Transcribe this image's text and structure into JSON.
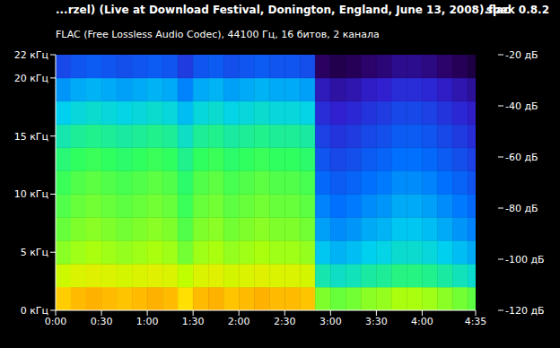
{
  "chart_data": {
    "type": "heatmap",
    "title": "...rzel) (Live at Download Festival, Donington, England, June 13, 2008).flac",
    "subtitle": "FLAC (Free Lossless Audio Codec), 44100 Гц, 16 битов, 2 канала",
    "annotations": [
      "spek 0.8.2"
    ],
    "grid": false,
    "xlim": [
      0,
      275
    ],
    "xticks": [
      {
        "value": 0,
        "label": "0:00"
      },
      {
        "value": 30,
        "label": "0:30"
      },
      {
        "value": 60,
        "label": "1:00"
      },
      {
        "value": 90,
        "label": "1:30"
      },
      {
        "value": 120,
        "label": "2:00"
      },
      {
        "value": 150,
        "label": "2:30"
      },
      {
        "value": 180,
        "label": "3:00"
      },
      {
        "value": 210,
        "label": "3:30"
      },
      {
        "value": 240,
        "label": "4:00"
      },
      {
        "value": 275,
        "label": "4:35"
      }
    ],
    "ylim": [
      0,
      22
    ],
    "yticks": [
      {
        "value": 0,
        "label": "0 кГц"
      },
      {
        "value": 5,
        "label": "5 кГц"
      },
      {
        "value": 10,
        "label": "10 кГц"
      },
      {
        "value": 15,
        "label": "15 кГц"
      },
      {
        "value": 20,
        "label": "20 кГц"
      },
      {
        "value": 22,
        "label": "22 кГц"
      }
    ],
    "x_bins": [
      0,
      10,
      20,
      30,
      40,
      50,
      60,
      70,
      80,
      90,
      100,
      110,
      120,
      130,
      140,
      150,
      160,
      170,
      180,
      190,
      200,
      210,
      220,
      230,
      240,
      250,
      260,
      270,
      280
    ],
    "y_bins": [
      0,
      2,
      4,
      6,
      8,
      10,
      12,
      14,
      16,
      18,
      20,
      22
    ],
    "cells": [
      [
        -40,
        -38,
        -37,
        -38,
        -39,
        -38,
        -37,
        -38,
        -42,
        -38,
        -37,
        -39,
        -38,
        -37,
        -38,
        -38,
        -39,
        -58,
        -60,
        -59,
        -57,
        -56,
        -54,
        -54,
        -55,
        -57,
        -59,
        -61
      ],
      [
        -50,
        -48,
        -47,
        -48,
        -49,
        -48,
        -47,
        -48,
        -52,
        -48,
        -47,
        -49,
        -48,
        -47,
        -48,
        -48,
        -49,
        -72,
        -74,
        -73,
        -71,
        -70,
        -68,
        -68,
        -69,
        -71,
        -73,
        -75
      ],
      [
        -57,
        -55,
        -54,
        -55,
        -56,
        -55,
        -54,
        -55,
        -59,
        -55,
        -54,
        -56,
        -55,
        -54,
        -55,
        -55,
        -56,
        -79,
        -81,
        -80,
        -78,
        -77,
        -75,
        -75,
        -76,
        -78,
        -80,
        -82
      ],
      [
        -60,
        -58,
        -57,
        -58,
        -59,
        -58,
        -57,
        -58,
        -62,
        -58,
        -57,
        -59,
        -58,
        -57,
        -58,
        -58,
        -59,
        -83,
        -85,
        -84,
        -82,
        -81,
        -79,
        -79,
        -80,
        -82,
        -84,
        -86
      ],
      [
        -62,
        -60,
        -59,
        -60,
        -61,
        -60,
        -59,
        -60,
        -64,
        -60,
        -59,
        -61,
        -60,
        -59,
        -60,
        -60,
        -61,
        -86,
        -88,
        -87,
        -85,
        -84,
        -82,
        -82,
        -83,
        -85,
        -87,
        -89
      ],
      [
        -64,
        -62,
        -61,
        -62,
        -63,
        -62,
        -61,
        -62,
        -66,
        -62,
        -61,
        -63,
        -62,
        -61,
        -62,
        -62,
        -63,
        -89,
        -91,
        -90,
        -88,
        -87,
        -85,
        -85,
        -86,
        -88,
        -90,
        -92
      ],
      [
        -67,
        -65,
        -64,
        -65,
        -66,
        -65,
        -64,
        -65,
        -69,
        -65,
        -64,
        -66,
        -65,
        -64,
        -65,
        -65,
        -66,
        -92,
        -94,
        -93,
        -91,
        -90,
        -88,
        -88,
        -89,
        -91,
        -93,
        -95
      ],
      [
        -72,
        -70,
        -69,
        -70,
        -71,
        -70,
        -69,
        -70,
        -74,
        -70,
        -69,
        -71,
        -70,
        -69,
        -70,
        -70,
        -71,
        -95,
        -97,
        -96,
        -94,
        -93,
        -91,
        -91,
        -92,
        -94,
        -96,
        -98
      ],
      [
        -78,
        -76,
        -75,
        -76,
        -77,
        -76,
        -75,
        -76,
        -80,
        -76,
        -75,
        -77,
        -76,
        -75,
        -76,
        -76,
        -77,
        -98,
        -100,
        -99,
        -97,
        -96,
        -94,
        -94,
        -95,
        -97,
        -99,
        -101
      ],
      [
        -84,
        -82,
        -81,
        -82,
        -83,
        -82,
        -81,
        -82,
        -86,
        -82,
        -81,
        -83,
        -82,
        -81,
        -82,
        -82,
        -83,
        -102,
        -104,
        -103,
        -101,
        -100,
        -98,
        -98,
        -99,
        -101,
        -103,
        -105
      ],
      [
        -94,
        -92,
        -91,
        -92,
        -93,
        -92,
        -91,
        -92,
        -96,
        -92,
        -91,
        -93,
        -92,
        -91,
        -92,
        -92,
        -93,
        -110,
        -112,
        -111,
        -109,
        -108,
        -106,
        -106,
        -107,
        -109,
        -111,
        -113
      ]
    ],
    "colorbar": {
      "range": [
        -120,
        -20
      ],
      "ticks": [
        {
          "value": -20,
          "label": "-20 дБ"
        },
        {
          "value": -40,
          "label": "-40 дБ"
        },
        {
          "value": -60,
          "label": "-60 дБ"
        },
        {
          "value": -80,
          "label": "-80 дБ"
        },
        {
          "value": -100,
          "label": "-100 дБ"
        },
        {
          "value": -120,
          "label": "-120 дБ"
        }
      ]
    }
  }
}
